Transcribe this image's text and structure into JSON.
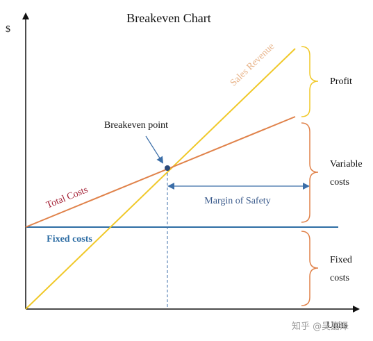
{
  "title": "Breakeven Chart",
  "axes": {
    "y_label": "$",
    "x_label": "Units"
  },
  "lines": {
    "sales_revenue": "Sales Revenue",
    "total_costs": "Total Costs",
    "fixed_costs": "Fixed costs"
  },
  "annotations": {
    "breakeven_point": "Breakeven point",
    "margin_of_safety": "Margin of Safety"
  },
  "brackets": {
    "profit": "Profit",
    "variable_costs": [
      "Variable",
      "costs"
    ],
    "fixed_costs": [
      "Fixed",
      "costs"
    ]
  },
  "watermark": "知乎 @吴嘉泽"
}
